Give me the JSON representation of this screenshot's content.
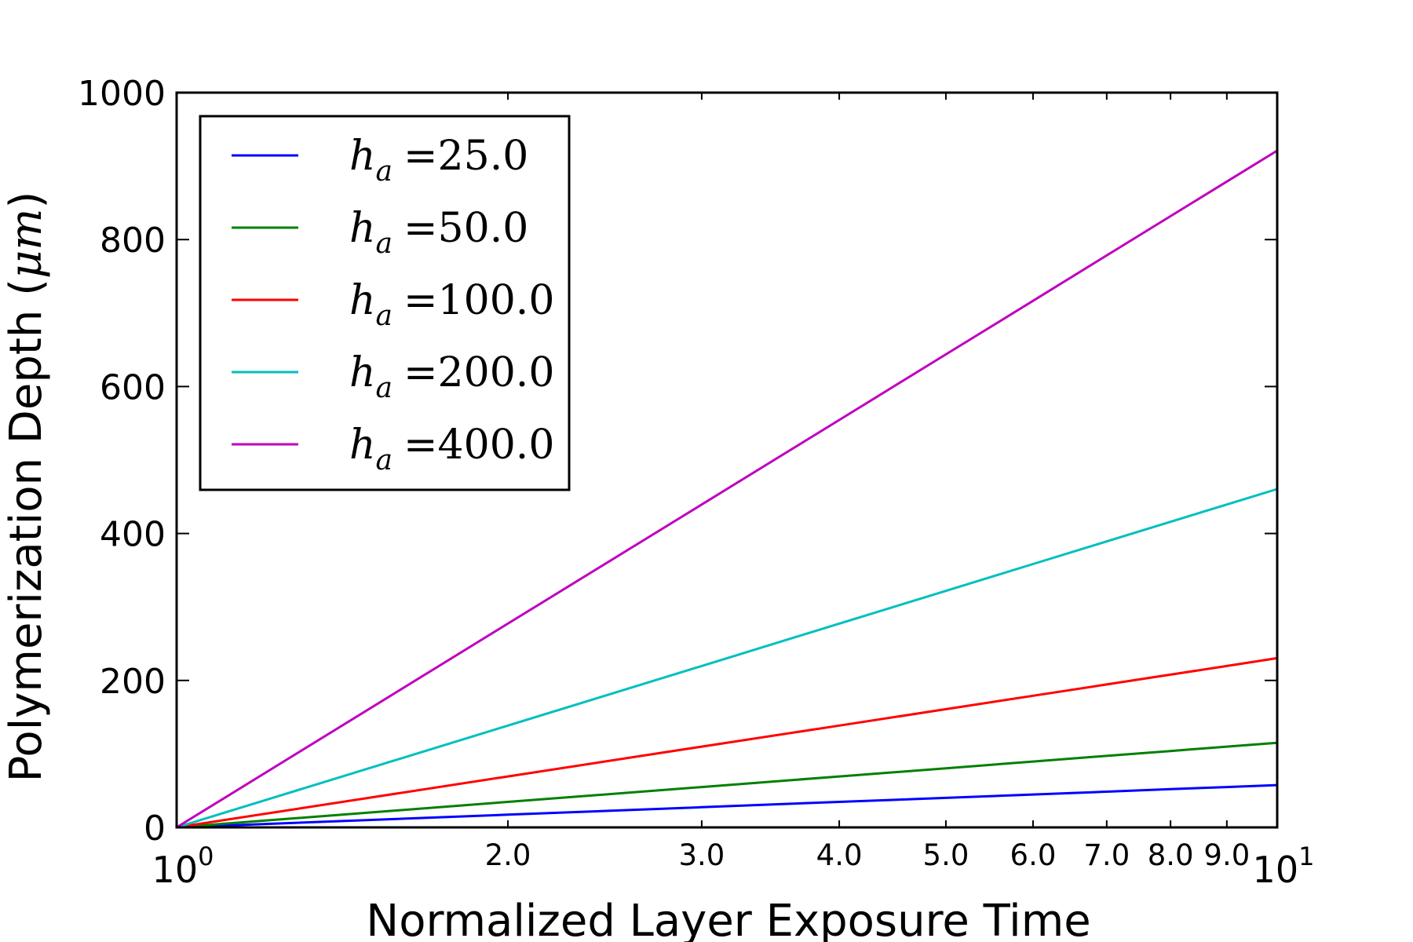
{
  "chart_data": {
    "type": "line",
    "title": "",
    "xlabel": "Normalized Layer Exposure Time",
    "ylabel": "Polymerization Depth",
    "ylabel_unit": "μm",
    "xscale": "log",
    "xlim": [
      1,
      10
    ],
    "ylim": [
      0,
      1000
    ],
    "grid": false,
    "legend_position": "upper-left",
    "x_major_ticks": [
      {
        "value": 1,
        "base": "10",
        "exp": "0"
      },
      {
        "value": 10,
        "base": "10",
        "exp": "1"
      }
    ],
    "x_minor_ticks": [
      {
        "value": 2,
        "label": "2.0"
      },
      {
        "value": 3,
        "label": "3.0"
      },
      {
        "value": 4,
        "label": "4.0"
      },
      {
        "value": 5,
        "label": "5.0"
      },
      {
        "value": 6,
        "label": "6.0"
      },
      {
        "value": 7,
        "label": "7.0"
      },
      {
        "value": 8,
        "label": "8.0"
      },
      {
        "value": 9,
        "label": "9.0"
      }
    ],
    "y_ticks": [
      {
        "value": 0,
        "label": "0"
      },
      {
        "value": 200,
        "label": "200"
      },
      {
        "value": 400,
        "label": "400"
      },
      {
        "value": 600,
        "label": "600"
      },
      {
        "value": 800,
        "label": "800"
      },
      {
        "value": 1000,
        "label": "1000"
      }
    ],
    "x": [
      1,
      2,
      3,
      4,
      5,
      6,
      7,
      8,
      9,
      10
    ],
    "series": [
      {
        "name": "h_a = 25.0",
        "symbol": "h",
        "sub": "a",
        "value_label": "25.0",
        "color": "#0000ff",
        "values": [
          0,
          17.3,
          27.5,
          34.7,
          40.2,
          44.8,
          48.6,
          52.0,
          54.9,
          57.6
        ]
      },
      {
        "name": "h_a = 50.0",
        "symbol": "h",
        "sub": "a",
        "value_label": "50.0",
        "color": "#008000",
        "values": [
          0,
          34.7,
          54.9,
          69.3,
          80.5,
          89.6,
          97.3,
          104.0,
          109.9,
          115.1
        ]
      },
      {
        "name": "h_a = 100.0",
        "symbol": "h",
        "sub": "a",
        "value_label": "100.0",
        "color": "#ff0000",
        "values": [
          0,
          69.3,
          109.9,
          138.6,
          160.9,
          179.2,
          194.6,
          207.9,
          219.7,
          230.3
        ]
      },
      {
        "name": "h_a = 200.0",
        "symbol": "h",
        "sub": "a",
        "value_label": "200.0",
        "color": "#00bfbf",
        "values": [
          0,
          138.6,
          219.7,
          277.3,
          321.9,
          358.4,
          389.2,
          415.9,
          439.4,
          460.5
        ]
      },
      {
        "name": "h_a = 400.0",
        "symbol": "h",
        "sub": "a",
        "value_label": "400.0",
        "color": "#bf00bf",
        "values": [
          0,
          277.3,
          439.4,
          554.5,
          643.8,
          716.7,
          778.4,
          831.8,
          878.9,
          921.0
        ]
      }
    ]
  }
}
